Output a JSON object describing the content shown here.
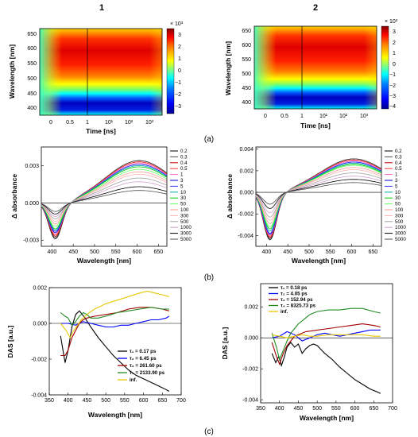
{
  "titles": [
    "1",
    "2"
  ],
  "panel_labels": [
    "(a)",
    "(b)",
    "(c)"
  ],
  "colors": {
    "jet": [
      "#00008f",
      "#0000ff",
      "#0080ff",
      "#00ffff",
      "#80ff80",
      "#ffff00",
      "#ff8000",
      "#ff0000",
      "#800000"
    ],
    "spectra": [
      "#000000",
      "#4d4d4d",
      "#c00000",
      "#ff3333",
      "#ff66cc",
      "#0000cc",
      "#3333ff",
      "#00aaaa",
      "#00cc00",
      "#66ff66",
      "#ff9999",
      "#ffb0b0",
      "#a0a0a0",
      "#d0a0d0"
    ],
    "das_left": [
      "#000000",
      "#0000ff",
      "#a00000",
      "#228b22",
      "#e6c800"
    ],
    "das_right": [
      "#000000",
      "#0000ff",
      "#a00000",
      "#228b22",
      "#e6c800"
    ]
  },
  "chart_data": [
    {
      "type": "heatmap",
      "panel": "a-1",
      "ylabel": "Wavelength [nm]",
      "xlabel": "Time [ns]",
      "yticks": [
        "650",
        "600",
        "550",
        "500",
        "450",
        "400"
      ],
      "xticks": [
        "0",
        "0.5",
        "1",
        "10¹",
        "10²",
        "10³"
      ],
      "colorbar_label": "× 10³",
      "colorbar_ticks": [
        "3",
        "2",
        "1",
        "0",
        "−1",
        "−2",
        "−3"
      ],
      "colorbar_range": [
        -3.4,
        3.4
      ]
    },
    {
      "type": "heatmap",
      "panel": "a-2",
      "ylabel": "Wavelength [nm]",
      "xlabel": "Time [ns]",
      "yticks": [
        "650",
        "600",
        "550",
        "500",
        "450",
        "400"
      ],
      "xticks": [
        "0",
        "0.5",
        "1",
        "10¹",
        "10²",
        "10³"
      ],
      "colorbar_label": "× 10³",
      "colorbar_ticks": [
        "3",
        "2",
        "1",
        "0",
        "−1",
        "−2",
        "−3",
        "−4"
      ],
      "colorbar_range": [
        -4.2,
        3.6
      ]
    },
    {
      "type": "line",
      "panel": "b-1",
      "ylabel": "Δ absorbance",
      "xlabel": "Wavelength [nm]",
      "xlim": [
        375,
        670
      ],
      "ylim": [
        -0.0035,
        0.0045
      ],
      "xticks": [
        400,
        450,
        500,
        550,
        600,
        650
      ],
      "yticks": [
        "0.003",
        "0.000",
        "-0.003"
      ],
      "legend": [
        "0.2",
        "0.3",
        "0.4",
        "0.5",
        "1",
        "3",
        "5",
        "10",
        "30",
        "50",
        "100",
        "300",
        "500",
        "1000",
        "3000",
        "5000"
      ],
      "amplitudes_min": [
        -0.0029,
        -0.0028,
        -0.0027,
        -0.0026,
        -0.0025,
        -0.0024,
        -0.0023,
        -0.0022,
        -0.0021,
        -0.0019,
        -0.0017,
        -0.0015,
        -0.0013,
        -0.0011,
        -0.0009,
        -0.0007
      ],
      "amplitudes_max": [
        0.0034,
        0.0034,
        0.0033,
        0.0033,
        0.0032,
        0.0031,
        0.0031,
        0.003,
        0.0029,
        0.0027,
        0.0025,
        0.0023,
        0.002,
        0.0017,
        0.0013,
        0.001
      ]
    },
    {
      "type": "line",
      "panel": "b-2",
      "ylabel": "Δ absorbance",
      "xlabel": "Wavelength [nm]",
      "xlim": [
        375,
        670
      ],
      "ylim": [
        -0.005,
        0.0042
      ],
      "xticks": [
        400,
        450,
        500,
        550,
        600,
        650
      ],
      "yticks": [
        "0.004",
        "0.002",
        "0.000",
        "-0.002",
        "-0.004"
      ],
      "legend": [
        "0.2",
        "0.3",
        "0.4",
        "0.5",
        "1",
        "3",
        "5",
        "10",
        "30",
        "50",
        "100",
        "300",
        "500",
        "1000",
        "3000",
        "5000"
      ],
      "amplitudes_min": [
        -0.0044,
        -0.0043,
        -0.0042,
        -0.0041,
        -0.004,
        -0.0039,
        -0.0038,
        -0.0036,
        -0.0034,
        -0.0032,
        -0.0029,
        -0.0026,
        -0.0023,
        -0.0019,
        -0.0015,
        -0.0011
      ],
      "amplitudes_max": [
        0.0031,
        0.0031,
        0.003,
        0.003,
        0.0029,
        0.0028,
        0.0028,
        0.0027,
        0.0026,
        0.0025,
        0.0023,
        0.0021,
        0.0018,
        0.0015,
        0.0012,
        0.0009
      ]
    },
    {
      "type": "line",
      "panel": "c-1",
      "ylabel": "DAS [a.u.]",
      "xlabel": "Wavelength [nm]",
      "xlim": [
        350,
        700
      ],
      "ylim": [
        -0.004,
        0.002
      ],
      "xticks": [
        350,
        400,
        450,
        500,
        550,
        600,
        650,
        700
      ],
      "yticks": [
        "0.002",
        "0.000",
        "-0.002",
        "-0.004"
      ],
      "series": [
        {
          "name": "τ₁ = 0.17 ps",
          "x": [
            380,
            392,
            400,
            410,
            420,
            430,
            445,
            460,
            480,
            500,
            520,
            540,
            560,
            580,
            600,
            620,
            640,
            660,
            668
          ],
          "y": [
            -0.0007,
            -0.0022,
            -0.0015,
            -0.0002,
            0.0005,
            0.0007,
            0.0003,
            -0.0002,
            -0.0008,
            -0.0013,
            -0.0018,
            -0.0022,
            -0.0026,
            -0.0029,
            -0.0031,
            -0.0033,
            -0.0035,
            -0.0037,
            -0.0038
          ]
        },
        {
          "name": "τ₂ = 6.45 ps",
          "x": [
            380,
            400,
            420,
            440,
            460,
            480,
            500,
            520,
            540,
            560,
            580,
            600,
            620,
            640,
            660,
            668
          ],
          "y": [
            0.0,
            0.0,
            -0.0001,
            0.0001,
            0.0,
            -0.0001,
            -0.0002,
            -0.0002,
            -0.0001,
            -0.0001,
            0.0,
            0.0001,
            0.0002,
            0.0002,
            0.0003,
            0.0004
          ]
        },
        {
          "name": "τ₃ = 261.60 ps",
          "x": [
            380,
            392,
            400,
            410,
            420,
            430,
            440,
            450,
            470,
            500,
            530,
            560,
            590,
            620,
            650,
            668
          ],
          "y": [
            -0.0018,
            -0.0018,
            -0.0015,
            -0.0008,
            -0.0004,
            0.0,
            0.0002,
            0.0003,
            0.0004,
            0.0005,
            0.0006,
            0.0008,
            0.0009,
            0.0009,
            0.0008,
            0.0007
          ]
        },
        {
          "name": "τ₄ = 2133.90 ps",
          "x": [
            380,
            392,
            400,
            410,
            420,
            430,
            440,
            450,
            460,
            480,
            500,
            530,
            560,
            590,
            620,
            650,
            668
          ],
          "y": [
            0.0006,
            0.0004,
            0.0003,
            -0.0001,
            0.0001,
            0.0004,
            0.0006,
            0.0005,
            0.0003,
            0.0003,
            0.0004,
            0.0006,
            0.0007,
            0.0008,
            0.0009,
            0.0008,
            0.0008
          ]
        },
        {
          "name": "inf.",
          "x": [
            380,
            395,
            405,
            415,
            425,
            435,
            450,
            470,
            500,
            530,
            560,
            590,
            610,
            630,
            650,
            668
          ],
          "y": [
            0.0,
            -0.0004,
            -0.0008,
            -0.0004,
            -0.0001,
            0.0002,
            0.0005,
            0.0008,
            0.0011,
            0.0013,
            0.0015,
            0.0017,
            0.0018,
            0.0017,
            0.0016,
            0.0015
          ]
        }
      ]
    },
    {
      "type": "line",
      "panel": "c-2",
      "ylabel": "DAS [a.u.]",
      "xlabel": "Wavelength [nm]",
      "xlim": [
        350,
        700
      ],
      "ylim": [
        -0.0042,
        0.0035
      ],
      "xticks": [
        350,
        400,
        450,
        500,
        550,
        600,
        650,
        700
      ],
      "yticks": [
        "0.002",
        "0.000",
        "-0.002",
        "-0.004"
      ],
      "series": [
        {
          "name": "τ₁ = 0.18 ps",
          "x": [
            380,
            390,
            398,
            405,
            412,
            420,
            430,
            440,
            450,
            460,
            470,
            480,
            490,
            500,
            520,
            540,
            560,
            580,
            600,
            620,
            640,
            660,
            668
          ],
          "y": [
            -0.001,
            -0.0016,
            -0.0012,
            -0.0018,
            -0.0013,
            -0.0006,
            -0.0003,
            -0.0006,
            -0.0004,
            -0.001,
            -0.0007,
            -0.0005,
            -0.0004,
            -0.0005,
            -0.001,
            -0.0014,
            -0.0019,
            -0.0023,
            -0.0027,
            -0.003,
            -0.0033,
            -0.0035,
            -0.0036
          ]
        },
        {
          "name": "τ₂ = 4.05 ps",
          "x": [
            380,
            400,
            420,
            440,
            460,
            480,
            500,
            520,
            540,
            560,
            580,
            600,
            620,
            640,
            660,
            668
          ],
          "y": [
            0.0,
            0.0001,
            0.0004,
            0.0002,
            -0.0002,
            0.0,
            0.0002,
            0.0003,
            0.0002,
            0.0001,
            0.0002,
            0.0003,
            0.0004,
            0.0005,
            0.0005,
            0.0005
          ]
        },
        {
          "name": "τ₃ = 152.94 ps",
          "x": [
            380,
            392,
            400,
            410,
            420,
            430,
            440,
            450,
            470,
            500,
            530,
            560,
            590,
            620,
            650,
            668
          ],
          "y": [
            -0.0003,
            -0.0012,
            -0.0017,
            -0.001,
            -0.0005,
            -0.0002,
            0.0001,
            0.0002,
            0.0004,
            0.0005,
            0.0006,
            0.0007,
            0.0008,
            0.0009,
            0.0008,
            0.0007
          ]
        },
        {
          "name": "τ₄ = 8325.73 ps",
          "x": [
            380,
            392,
            400,
            410,
            420,
            430,
            440,
            450,
            460,
            470,
            480,
            500,
            530,
            560,
            590,
            620,
            650,
            668
          ],
          "y": [
            0.0003,
            -0.0006,
            -0.0014,
            -0.0008,
            -0.0002,
            0.0003,
            0.0006,
            0.0009,
            0.0011,
            0.0013,
            0.0015,
            0.0017,
            0.0018,
            0.0018,
            0.0019,
            0.0019,
            0.0017,
            0.0016
          ]
        },
        {
          "name": "inf.",
          "x": [
            380,
            400,
            420,
            440,
            460,
            480,
            500,
            530,
            560,
            590,
            620,
            650,
            668
          ],
          "y": [
            0.0002,
            0.0001,
            0.0,
            0.0001,
            0.0002,
            0.0001,
            0.0001,
            0.0002,
            0.0002,
            0.0002,
            0.0002,
            0.0001,
            0.0001
          ]
        }
      ]
    }
  ]
}
